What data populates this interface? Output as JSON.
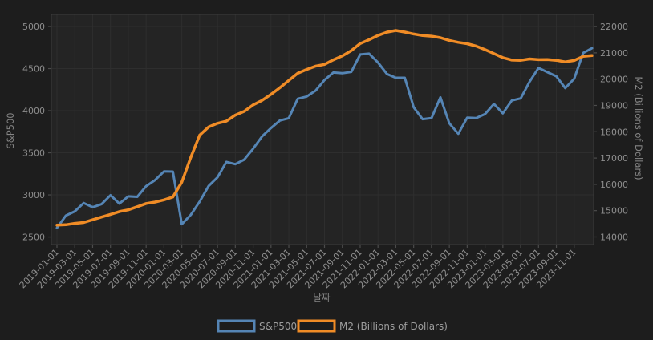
{
  "chart_data": {
    "type": "line",
    "title": "",
    "xlabel": "날짜",
    "ylabel_left": "S&P500",
    "ylabel_right": "M2 (Billions of Dollars)",
    "legend": [
      "S&P500",
      "M2 (Billions of Dollars)"
    ],
    "legend_position": "bottom-center",
    "grid": "on",
    "x_tick_step_months": 2,
    "x_tick_labels": [
      "2019-01-01",
      "2019-03-01",
      "2019-05-01",
      "2019-07-01",
      "2019-09-01",
      "2019-11-01",
      "2020-01-01",
      "2020-03-01",
      "2020-05-01",
      "2020-07-01",
      "2020-09-01",
      "2020-11-01",
      "2021-01-01",
      "2021-03-01",
      "2021-05-01",
      "2021-07-01",
      "2021-09-01",
      "2021-11-01",
      "2022-01-01",
      "2022-03-01",
      "2022-05-01",
      "2022-07-01",
      "2022-09-01",
      "2022-11-01",
      "2023-01-01",
      "2023-03-01",
      "2023-05-01",
      "2023-07-01",
      "2023-09-01",
      "2023-11-01"
    ],
    "x_monthly": [
      "2019-01-01",
      "2019-02-01",
      "2019-03-01",
      "2019-04-01",
      "2019-05-01",
      "2019-06-01",
      "2019-07-01",
      "2019-08-01",
      "2019-09-01",
      "2019-10-01",
      "2019-11-01",
      "2019-12-01",
      "2020-01-01",
      "2020-02-01",
      "2020-03-01",
      "2020-04-01",
      "2020-05-01",
      "2020-06-01",
      "2020-07-01",
      "2020-08-01",
      "2020-09-01",
      "2020-10-01",
      "2020-11-01",
      "2020-12-01",
      "2021-01-01",
      "2021-02-01",
      "2021-03-01",
      "2021-04-01",
      "2021-05-01",
      "2021-06-01",
      "2021-07-01",
      "2021-08-01",
      "2021-09-01",
      "2021-10-01",
      "2021-11-01",
      "2021-12-01",
      "2022-01-01",
      "2022-02-01",
      "2022-03-01",
      "2022-04-01",
      "2022-05-01",
      "2022-06-01",
      "2022-07-01",
      "2022-08-01",
      "2022-09-01",
      "2022-10-01",
      "2022-11-01",
      "2022-12-01",
      "2023-01-01",
      "2023-02-01",
      "2023-03-01",
      "2023-04-01",
      "2023-05-01",
      "2023-06-01",
      "2023-07-01",
      "2023-08-01",
      "2023-09-01",
      "2023-10-01",
      "2023-11-01",
      "2023-12-01",
      "2024-01-01"
    ],
    "yticks_left": [
      2500,
      3000,
      3500,
      4000,
      4500,
      5000
    ],
    "yticks_right": [
      14000,
      15000,
      16000,
      17000,
      18000,
      19000,
      20000,
      21000,
      22000
    ],
    "ylim_left": [
      2410,
      5143
    ],
    "ylim_right": [
      13710,
      22460
    ],
    "series": [
      {
        "name": "S&P500",
        "axis": "left",
        "color": "#5585b5",
        "values": [
          2607,
          2754,
          2804,
          2903,
          2854,
          2890,
          2996,
          2897,
          2982,
          2977,
          3104,
          3176,
          3278,
          3277,
          2652,
          2762,
          2920,
          3105,
          3208,
          3392,
          3365,
          3418,
          3549,
          3695,
          3794,
          3883,
          3911,
          4141,
          4168,
          4238,
          4364,
          4454,
          4445,
          4460,
          4668,
          4677,
          4573,
          4436,
          4391,
          4391,
          4040,
          3899,
          3912,
          4158,
          3850,
          3726,
          3917,
          3912,
          3960,
          4080,
          3969,
          4121,
          4146,
          4345,
          4508,
          4457,
          4409,
          4269,
          4380,
          4685,
          4742
        ]
      },
      {
        "name": "M2 (Billions of Dollars)",
        "axis": "right",
        "color": "#f08c26",
        "values": [
          14448,
          14463,
          14514,
          14549,
          14653,
          14755,
          14855,
          14963,
          15030,
          15150,
          15270,
          15327,
          15407,
          15519,
          16082,
          17023,
          17870,
          18181,
          18321,
          18403,
          18631,
          18775,
          19021,
          19193,
          19420,
          19672,
          19951,
          20222,
          20370,
          20493,
          20560,
          20733,
          20885,
          21085,
          21353,
          21499,
          21660,
          21786,
          21850,
          21790,
          21716,
          21659,
          21634,
          21577,
          21473,
          21398,
          21348,
          21255,
          21122,
          20972,
          20817,
          20724,
          20715,
          20767,
          20741,
          20748,
          20715,
          20655,
          20710,
          20866,
          20900
        ]
      }
    ],
    "colors": {
      "figure_bg": "#1d1d1d",
      "axes_bg": "#242424",
      "grid": "#2e2e2e",
      "spine": "#3d3d3d",
      "tick_mark": "#4c4c4c",
      "tick_text": "#8e8e8e",
      "axis_label_text": "#858585",
      "legend_text": "#9d9d9d"
    }
  }
}
